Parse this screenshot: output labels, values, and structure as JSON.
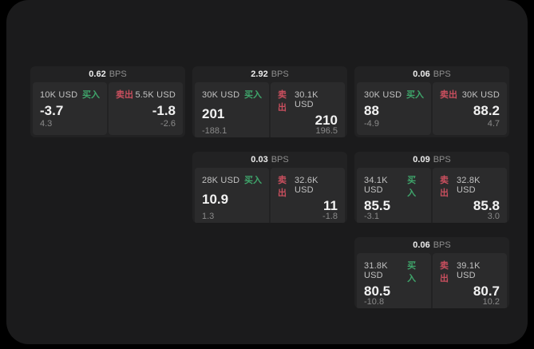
{
  "labels": {
    "bps": "BPS",
    "buy": "买入",
    "sell": "卖出"
  },
  "colors": {
    "buy": "#3fa56b",
    "sell": "#c94f5e",
    "panel_bg": "#1b1b1c",
    "card_bg": "#222223",
    "pane_bg": "#2b2b2c"
  },
  "cards": [
    {
      "bps": "0.62",
      "row": 0,
      "col": 0,
      "buy": {
        "amount": "10K USD",
        "price": "-3.7",
        "delta": "4.3"
      },
      "sell": {
        "amount": "5.5K USD",
        "price": "-1.8",
        "delta": "-2.6"
      }
    },
    {
      "bps": "2.92",
      "row": 0,
      "col": 1,
      "buy": {
        "amount": "30K USD",
        "price": "201",
        "delta": "-188.1"
      },
      "sell": {
        "amount": "30.1K USD",
        "price": "210",
        "delta": "196.5"
      }
    },
    {
      "bps": "0.06",
      "row": 0,
      "col": 2,
      "buy": {
        "amount": "30K USD",
        "price": "88",
        "delta": "-4.9"
      },
      "sell": {
        "amount": "30K USD",
        "price": "88.2",
        "delta": "4.7"
      }
    },
    {
      "bps": "0.03",
      "row": 1,
      "col": 1,
      "buy": {
        "amount": "28K USD",
        "price": "10.9",
        "delta": "1.3"
      },
      "sell": {
        "amount": "32.6K USD",
        "price": "11",
        "delta": "-1.8"
      }
    },
    {
      "bps": "0.09",
      "row": 1,
      "col": 2,
      "buy": {
        "amount": "34.1K USD",
        "price": "85.5",
        "delta": "-3.1"
      },
      "sell": {
        "amount": "32.8K USD",
        "price": "85.8",
        "delta": "3.0"
      }
    },
    {
      "bps": "0.06",
      "row": 2,
      "col": 2,
      "buy": {
        "amount": "31.8K USD",
        "price": "80.5",
        "delta": "-10.8"
      },
      "sell": {
        "amount": "39.1K USD",
        "price": "80.7",
        "delta": "10.2"
      }
    }
  ]
}
